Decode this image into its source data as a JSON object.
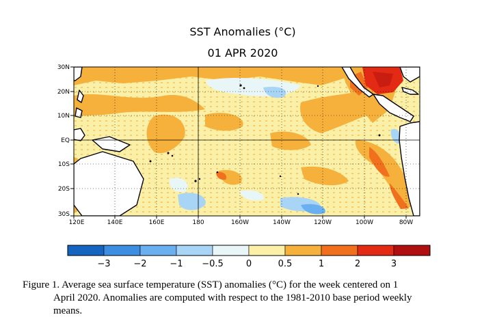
{
  "map": {
    "title": "SST Anomalies (°C)",
    "date": "01 APR 2020",
    "lat_labels": [
      "30N",
      "20N",
      "10N",
      "EQ",
      "10S",
      "20S",
      "30S"
    ],
    "lon_labels": [
      "120E",
      "140E",
      "160E",
      "180",
      "160W",
      "140W",
      "120W",
      "100W",
      "80W"
    ],
    "colorbar": {
      "colors": [
        "#1565c0",
        "#3d8ee0",
        "#6aaff0",
        "#a8d4f5",
        "#e8f6f8",
        "#fbf0a8",
        "#f5b13c",
        "#f0701e",
        "#e22a14",
        "#b00f0f"
      ],
      "tick_labels": [
        "−3",
        "−2",
        "−1",
        "−0.5",
        "0",
        "0.5",
        "1",
        "2",
        "3"
      ]
    }
  },
  "caption": {
    "line1": "Figure 1. Average sea surface temperature (SST) anomalies (°C) for the week centered on 1",
    "line2": "April 2020.  Anomalies are computed with respect to the 1981-2010 base period weekly",
    "line3": "means."
  }
}
